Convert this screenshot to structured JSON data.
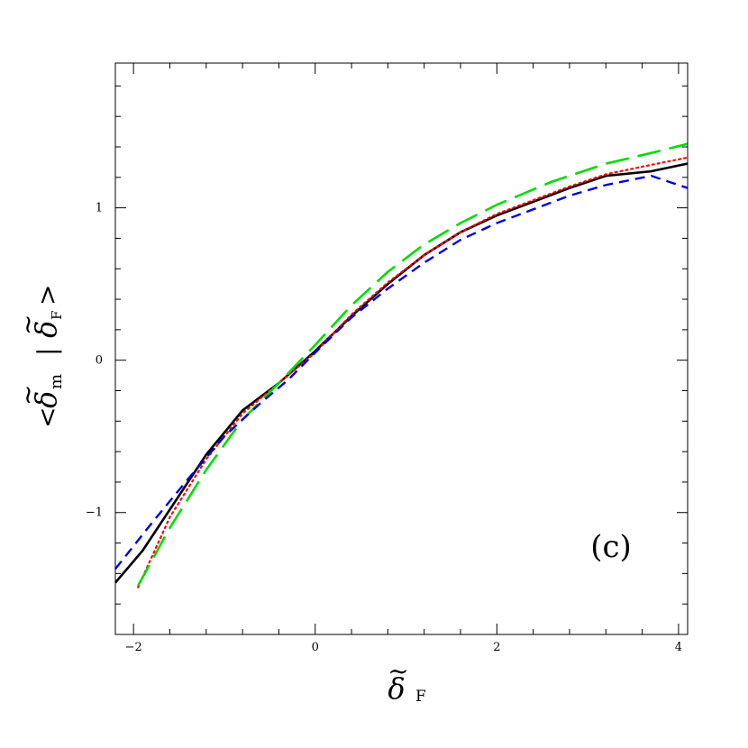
{
  "chart_data": {
    "type": "line",
    "xlabel": "δ̃F",
    "ylabel": "<δ̃m | δ̃F>",
    "xlabel_parts": {
      "symbol": "δ",
      "tilde": "~",
      "subscript": "F"
    },
    "ylabel_parts": {
      "open": "<",
      "symbol": "δ",
      "tilde": "~",
      "sub_m": "m",
      "bar": "|",
      "symbol2": "δ",
      "sub_f": "F",
      "close": ">"
    },
    "annotation": "(c)",
    "xlim": [
      -2.2,
      4.1
    ],
    "ylim": [
      -1.8,
      1.95
    ],
    "x_ticks": [
      -2,
      0,
      2,
      4
    ],
    "x_tick_labels": [
      "−2",
      "0",
      "2",
      "4"
    ],
    "y_ticks": [
      -1,
      0,
      1
    ],
    "y_tick_labels": [
      "−1",
      "0",
      "1"
    ],
    "x_minor_step": 0.4,
    "y_minor_step": 0.2,
    "grid": false,
    "legend": "none",
    "series": [
      {
        "color": "#000000",
        "style": "solid",
        "x": [
          -2.2,
          -1.9,
          -1.6,
          -1.2,
          -0.8,
          -0.4,
          0.0,
          0.4,
          0.8,
          1.2,
          1.6,
          2.0,
          2.4,
          2.8,
          3.2,
          3.7,
          4.1
        ],
        "y": [
          -1.46,
          -1.25,
          -0.98,
          -0.62,
          -0.33,
          -0.15,
          0.06,
          0.29,
          0.5,
          0.69,
          0.84,
          0.95,
          1.04,
          1.13,
          1.21,
          1.24,
          1.29
        ]
      },
      {
        "color": "#ff0000",
        "style": "dotted",
        "x": [
          -1.95,
          -1.6,
          -1.2,
          -0.8,
          -0.4,
          0.0,
          0.4,
          0.8,
          1.2,
          1.6,
          2.0,
          2.4,
          2.8,
          3.2,
          3.6,
          4.1
        ],
        "y": [
          -1.49,
          -1.03,
          -0.65,
          -0.35,
          -0.15,
          0.05,
          0.3,
          0.51,
          0.69,
          0.84,
          0.96,
          1.05,
          1.14,
          1.22,
          1.27,
          1.33
        ]
      },
      {
        "color": "#00dd00",
        "style": "long-dash",
        "x": [
          -1.95,
          -1.6,
          -1.2,
          -0.8,
          -0.4,
          0.0,
          0.4,
          0.8,
          1.2,
          1.6,
          2.0,
          2.6,
          3.2,
          3.7,
          4.1
        ],
        "y": [
          -1.48,
          -1.1,
          -0.72,
          -0.39,
          -0.15,
          0.1,
          0.36,
          0.58,
          0.76,
          0.9,
          1.02,
          1.17,
          1.29,
          1.36,
          1.42
        ]
      },
      {
        "color": "#0000dd",
        "style": "short-dash",
        "x": [
          -2.2,
          -1.8,
          -1.4,
          -1.0,
          -0.6,
          -0.3,
          0.0,
          0.4,
          0.8,
          1.2,
          1.6,
          2.0,
          2.4,
          2.8,
          3.2,
          3.7,
          4.1
        ],
        "y": [
          -1.37,
          -1.07,
          -0.78,
          -0.5,
          -0.28,
          -0.13,
          0.05,
          0.28,
          0.47,
          0.64,
          0.79,
          0.9,
          0.99,
          1.08,
          1.15,
          1.21,
          1.13
        ]
      }
    ]
  }
}
